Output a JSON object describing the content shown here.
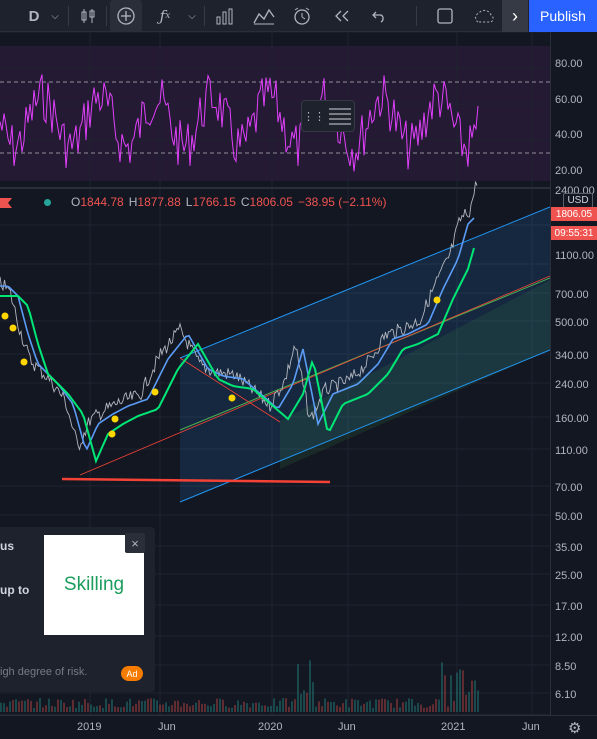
{
  "toolbar": {
    "interval": "D",
    "publish_label": "Publish"
  },
  "symbol": {
    "open_key": "O",
    "open": "1844.78",
    "high_key": "H",
    "high": "1877.88",
    "low_key": "L",
    "low": "1766.15",
    "close_key": "C",
    "close": "1806.05",
    "change": "−38.95 (−2.11%)"
  },
  "price_axis": {
    "currency": "USD",
    "last_price": "1806.05",
    "countdown": "09:55:31",
    "rsi_labels": [
      "80.00",
      "60.00",
      "40.00",
      "20.00"
    ],
    "price_labels": [
      "2400.00",
      "1100.00",
      "700.00",
      "500.00",
      "340.00",
      "240.00",
      "160.00",
      "110.00",
      "70.00",
      "50.00",
      "35.00",
      "25.00",
      "17.00",
      "12.00",
      "8.50",
      "6.10"
    ]
  },
  "date_axis": {
    "labels": [
      "2019",
      "Jun",
      "2020",
      "Jun",
      "2021",
      "Jun"
    ]
  },
  "ad": {
    "line1": "us",
    "line2": "up to",
    "logo": "Skilling",
    "risk": "igh degree of risk.",
    "badge": "Ad",
    "close": "×"
  },
  "colors": {
    "background": "#131722",
    "channel": "#2196f3",
    "ma_green": "#00e676",
    "ma_blue": "#5b9cf6",
    "rsi": "#e040fb",
    "support_line": "#f44336",
    "publish": "#2962ff",
    "down": "#ef5350"
  },
  "icons": [
    "candles-icon",
    "crosshair-icon",
    "fx-icon",
    "bar-chart-icon",
    "indicators-icon",
    "alert-icon",
    "replay-icon",
    "undo-icon",
    "fullscreen-icon",
    "cloud-icon",
    "settings-icon"
  ]
}
